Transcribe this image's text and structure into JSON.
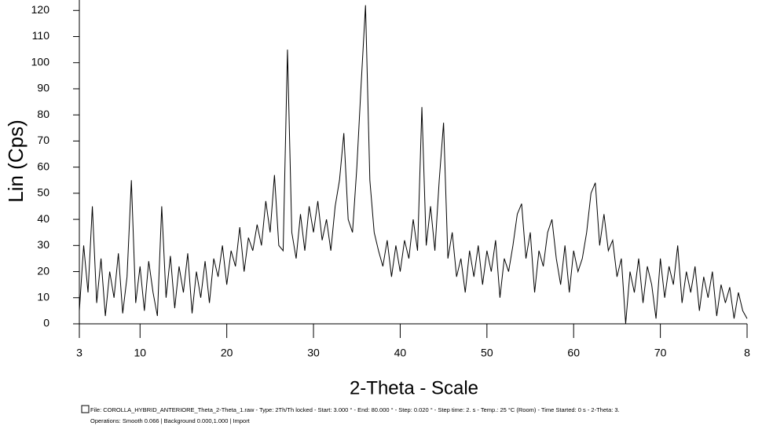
{
  "chart_data": {
    "type": "line",
    "y_label": "Lin (Cps)",
    "x_label": "2-Theta - Scale",
    "footer_lines": [
      "File: COROLLA_HYBRID_ANTERIORE_Theta_2-Theta_1.raw - Type: 2Th/Th locked - Start: 3.000 ° - End: 80.000 ° - Step: 0.020 ° - Step time: 2. s - Temp.: 25 °C (Room) - Time Started: 0 s - 2-Theta: 3.",
      "Operations: Smooth 0.066 | Background 0.000,1.000 | Import"
    ],
    "xlim": [
      3,
      80
    ],
    "ylim": [
      0,
      124
    ],
    "xticks": [
      3,
      10,
      20,
      30,
      40,
      50,
      60,
      70,
      {
        "value": 80,
        "label": "8"
      }
    ],
    "yticks": [
      0,
      10,
      20,
      30,
      40,
      50,
      60,
      70,
      80,
      90,
      100,
      110,
      120
    ],
    "color": "#000000",
    "x": [
      3,
      3.5,
      4,
      4.5,
      5,
      5.5,
      6,
      6.5,
      7,
      7.5,
      8,
      8.5,
      9,
      9.5,
      10,
      10.5,
      11,
      11.5,
      12,
      12.5,
      13,
      13.5,
      14,
      14.5,
      15,
      15.5,
      16,
      16.5,
      17,
      17.5,
      18,
      18.5,
      19,
      19.5,
      20,
      20.5,
      21,
      21.5,
      22,
      22.5,
      23,
      23.5,
      24,
      24.5,
      25,
      25.5,
      26,
      26.5,
      27,
      27.5,
      28,
      28.5,
      29,
      29.5,
      30,
      30.5,
      31,
      31.5,
      32,
      32.5,
      33,
      33.5,
      34,
      34.5,
      35,
      35.5,
      36,
      36.5,
      37,
      37.5,
      38,
      38.5,
      39,
      39.5,
      40,
      40.5,
      41,
      41.5,
      42,
      42.5,
      43,
      43.5,
      44,
      44.5,
      45,
      45.5,
      46,
      46.5,
      47,
      47.5,
      48,
      48.5,
      49,
      49.5,
      50,
      50.5,
      51,
      51.5,
      52,
      52.5,
      53,
      53.5,
      54,
      54.5,
      55,
      55.5,
      56,
      56.5,
      57,
      57.5,
      58,
      58.5,
      59,
      59.5,
      60,
      60.5,
      61,
      61.5,
      62,
      62.5,
      63,
      63.5,
      64,
      64.5,
      65,
      65.5,
      66,
      66.5,
      67,
      67.5,
      68,
      68.5,
      69,
      69.5,
      70,
      70.5,
      71,
      71.5,
      72,
      72.5,
      73,
      73.5,
      74,
      74.5,
      75,
      75.5,
      76,
      76.5,
      77,
      77.5,
      78,
      78.5,
      79,
      79.5,
      80
    ],
    "values": [
      5,
      30,
      12,
      45,
      8,
      25,
      3,
      20,
      10,
      27,
      4,
      18,
      55,
      8,
      22,
      5,
      24,
      12,
      3,
      45,
      10,
      26,
      6,
      22,
      12,
      27,
      4,
      20,
      10,
      24,
      8,
      25,
      18,
      30,
      15,
      28,
      22,
      37,
      20,
      33,
      28,
      38,
      30,
      47,
      35,
      57,
      30,
      28,
      105,
      35,
      25,
      42,
      28,
      45,
      35,
      47,
      32,
      40,
      28,
      45,
      55,
      73,
      40,
      35,
      60,
      92,
      122,
      55,
      35,
      28,
      22,
      32,
      18,
      30,
      20,
      32,
      25,
      40,
      28,
      83,
      30,
      45,
      28,
      55,
      77,
      25,
      35,
      18,
      25,
      12,
      28,
      18,
      30,
      15,
      28,
      20,
      32,
      10,
      25,
      20,
      30,
      42,
      46,
      25,
      35,
      12,
      28,
      22,
      35,
      40,
      25,
      15,
      30,
      12,
      28,
      20,
      25,
      35,
      50,
      54,
      30,
      42,
      28,
      32,
      18,
      25,
      0,
      20,
      12,
      25,
      8,
      22,
      15,
      2,
      25,
      10,
      22,
      15,
      30,
      8,
      20,
      12,
      22,
      5,
      18,
      10,
      20,
      3,
      15,
      8,
      14,
      2,
      12,
      5,
      2
    ]
  }
}
